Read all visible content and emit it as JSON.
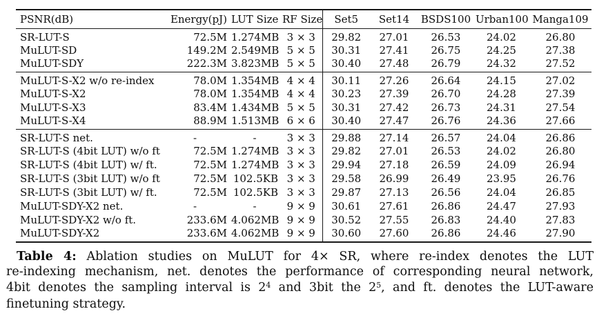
{
  "colors": {
    "background": "#ffffff",
    "text": "#0e0e0e",
    "rule": "#181818"
  },
  "table": {
    "columns": [
      "PSNR(dB)",
      "Energy(pJ)",
      "LUT Size",
      "RF Size",
      "Set5",
      "Set14",
      "BSDS100",
      "Urban100",
      "Manga109"
    ],
    "sections": [
      {
        "rows": [
          [
            "SR-LUT-S",
            "72.5M",
            "1.274MB",
            "3 × 3",
            "29.82",
            "27.01",
            "26.53",
            "24.02",
            "26.80"
          ],
          [
            "MuLUT-SD",
            "149.2M",
            "2.549MB",
            "5 × 5",
            "30.31",
            "27.41",
            "26.75",
            "24.25",
            "27.38"
          ],
          [
            "MuLUT-SDY",
            "222.3M",
            "3.823MB",
            "5 × 5",
            "30.40",
            "27.48",
            "26.79",
            "24.32",
            "27.52"
          ]
        ]
      },
      {
        "rows": [
          [
            "MuLUT-S-X2 w/o re-index",
            "78.0M",
            "1.354MB",
            "4 × 4",
            "30.11",
            "27.26",
            "26.64",
            "24.15",
            "27.02"
          ],
          [
            "MuLUT-S-X2",
            "78.0M",
            "1.354MB",
            "4 × 4",
            "30.23",
            "27.39",
            "26.70",
            "24.28",
            "27.39"
          ],
          [
            "MuLUT-S-X3",
            "83.4M",
            "1.434MB",
            "5 × 5",
            "30.31",
            "27.42",
            "26.73",
            "24.31",
            "27.54"
          ],
          [
            "MuLUT-S-X4",
            "88.9M",
            "1.513MB",
            "6 × 6",
            "30.40",
            "27.47",
            "26.76",
            "24.36",
            "27.66"
          ]
        ]
      },
      {
        "rows": [
          [
            "SR-LUT-S net.",
            "-",
            "-",
            "3 × 3",
            "29.88",
            "27.14",
            "26.57",
            "24.04",
            "26.86"
          ],
          [
            "SR-LUT-S (4bit LUT) w/o ft.",
            "72.5M",
            "1.274MB",
            "3 × 3",
            "29.82",
            "27.01",
            "26.53",
            "24.02",
            "26.80"
          ],
          [
            "SR-LUT-S (4bit LUT) w/ ft.",
            "72.5M",
            "1.274MB",
            "3 × 3",
            "29.94",
            "27.18",
            "26.59",
            "24.09",
            "26.94"
          ],
          [
            "SR-LUT-S (3bit LUT) w/o ft.",
            "72.5M",
            "102.5KB",
            "3 × 3",
            "29.58",
            "26.99",
            "26.49",
            "23.95",
            "26.76"
          ],
          [
            "SR-LUT-S (3bit LUT) w/ ft.",
            "72.5M",
            "102.5KB",
            "3 × 3",
            "29.87",
            "27.13",
            "26.56",
            "24.04",
            "26.85"
          ],
          [
            "MuLUT-SDY-X2 net.",
            "-",
            "-",
            "9 × 9",
            "30.61",
            "27.61",
            "26.86",
            "24.47",
            "27.93"
          ],
          [
            "MuLUT-SDY-X2 w/o ft.",
            "233.6M",
            "4.062MB",
            "9 × 9",
            "30.52",
            "27.55",
            "26.83",
            "24.40",
            "27.83"
          ],
          [
            "MuLUT-SDY-X2",
            "233.6M",
            "4.062MB",
            "9 × 9",
            "30.60",
            "27.60",
            "26.86",
            "24.46",
            "27.90"
          ]
        ]
      }
    ]
  },
  "caption": {
    "label": "Table 4:",
    "line1_rest": "Ablation studies on MuLUT for 4× SR, where re-index denotes the LUT",
    "line2": "re-indexing mechanism, net. denotes the performance of corresponding neural network,",
    "line3_pre": "4bit denotes the sampling interval is 2",
    "line3_sup1": "4",
    "line3_mid": " and 3bit the 2",
    "line3_sup2": "5",
    "line3_post": ", and ft. denotes the LUT-aware",
    "line4": "finetuning strategy."
  }
}
